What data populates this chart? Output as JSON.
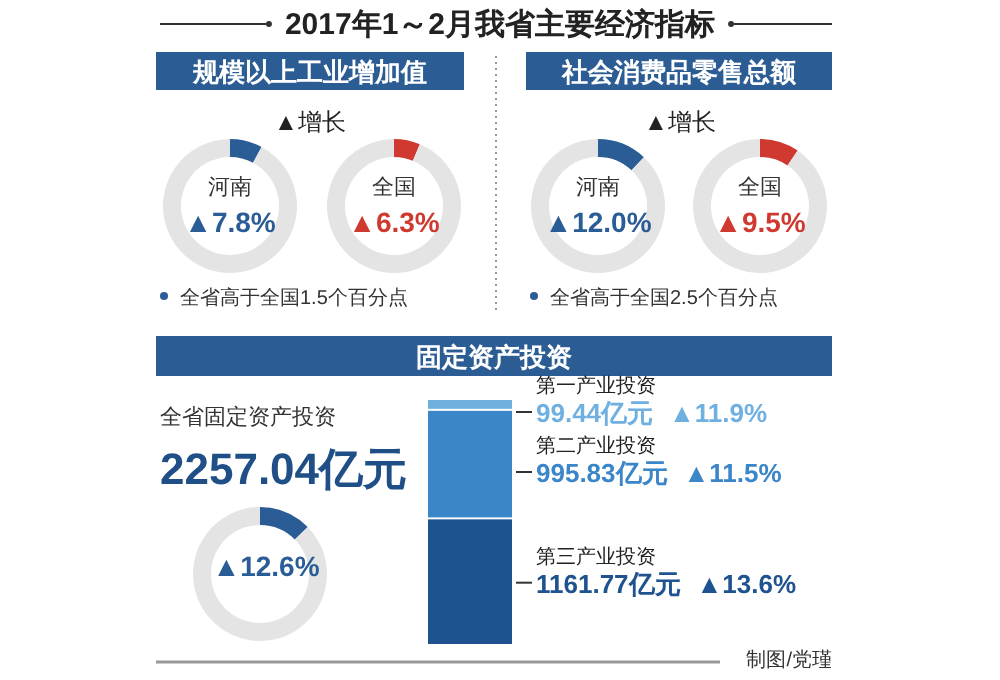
{
  "chart_data": [
    {
      "type": "other",
      "title": "2017年1～2月我省主要经济指标"
    },
    {
      "type": "donut",
      "title": "规模以上工业增加值",
      "subtitle": "▲增长",
      "categories": [
        "河南",
        null
      ],
      "values": [
        7.8,
        92.2
      ],
      "colors": [
        "#2a5d96",
        "#e4e4e4"
      ],
      "value_labels": [
        "▲7.8%",
        null
      ],
      "annotations": [
        "全省高于全国1.5个百分点"
      ]
    },
    {
      "type": "donut",
      "categories": [
        "全国",
        null
      ],
      "values": [
        6.3,
        93.7
      ],
      "colors": [
        "#d0392f",
        "#e4e4e4"
      ],
      "value_labels": [
        "▲6.3%",
        null
      ]
    },
    {
      "type": "donut",
      "title": "社会消费品零售总额",
      "subtitle": "▲增长",
      "categories": [
        "河南",
        null
      ],
      "values": [
        12.0,
        88.0
      ],
      "colors": [
        "#2a5d96",
        "#e4e4e4"
      ],
      "value_labels": [
        "▲12.0%",
        null
      ],
      "annotations": [
        "全省高于全国2.5个百分点"
      ]
    },
    {
      "type": "donut",
      "categories": [
        "全国",
        null
      ],
      "values": [
        9.5,
        90.5
      ],
      "colors": [
        "#d0392f",
        "#e4e4e4"
      ],
      "value_labels": [
        "▲9.5%",
        null
      ]
    },
    {
      "type": "other",
      "title": "固定资产投资"
    },
    {
      "type": "donut",
      "categories": [
        null,
        null
      ],
      "values": [
        12.6,
        87.4
      ],
      "colors": [
        "#2a5d96",
        "#e4e4e4"
      ],
      "value_labels": [
        "▲12.6%",
        null
      ],
      "annotations": [
        "全省固定资产投资",
        "2257.04亿元"
      ]
    },
    {
      "type": "bar",
      "stacked": true,
      "categories": [
        null
      ],
      "series": [
        {
          "name": "第三产业投资",
          "color": "#1f5390",
          "values": [
            1161.77
          ],
          "value_labels": [
            "1161.77亿元"
          ]
        },
        {
          "name": "第二产业投资",
          "color": "#3a86c8",
          "values": [
            995.83
          ],
          "value_labels": [
            "995.83亿元"
          ]
        },
        {
          "name": "第一产业投资",
          "color": "#6fb0e0",
          "values": [
            99.44
          ],
          "value_labels": [
            "99.44亿元"
          ]
        }
      ],
      "annotations": [
        "▲13.6%",
        "▲11.5%",
        "▲11.9%",
        "制图/党瑾"
      ]
    }
  ]
}
